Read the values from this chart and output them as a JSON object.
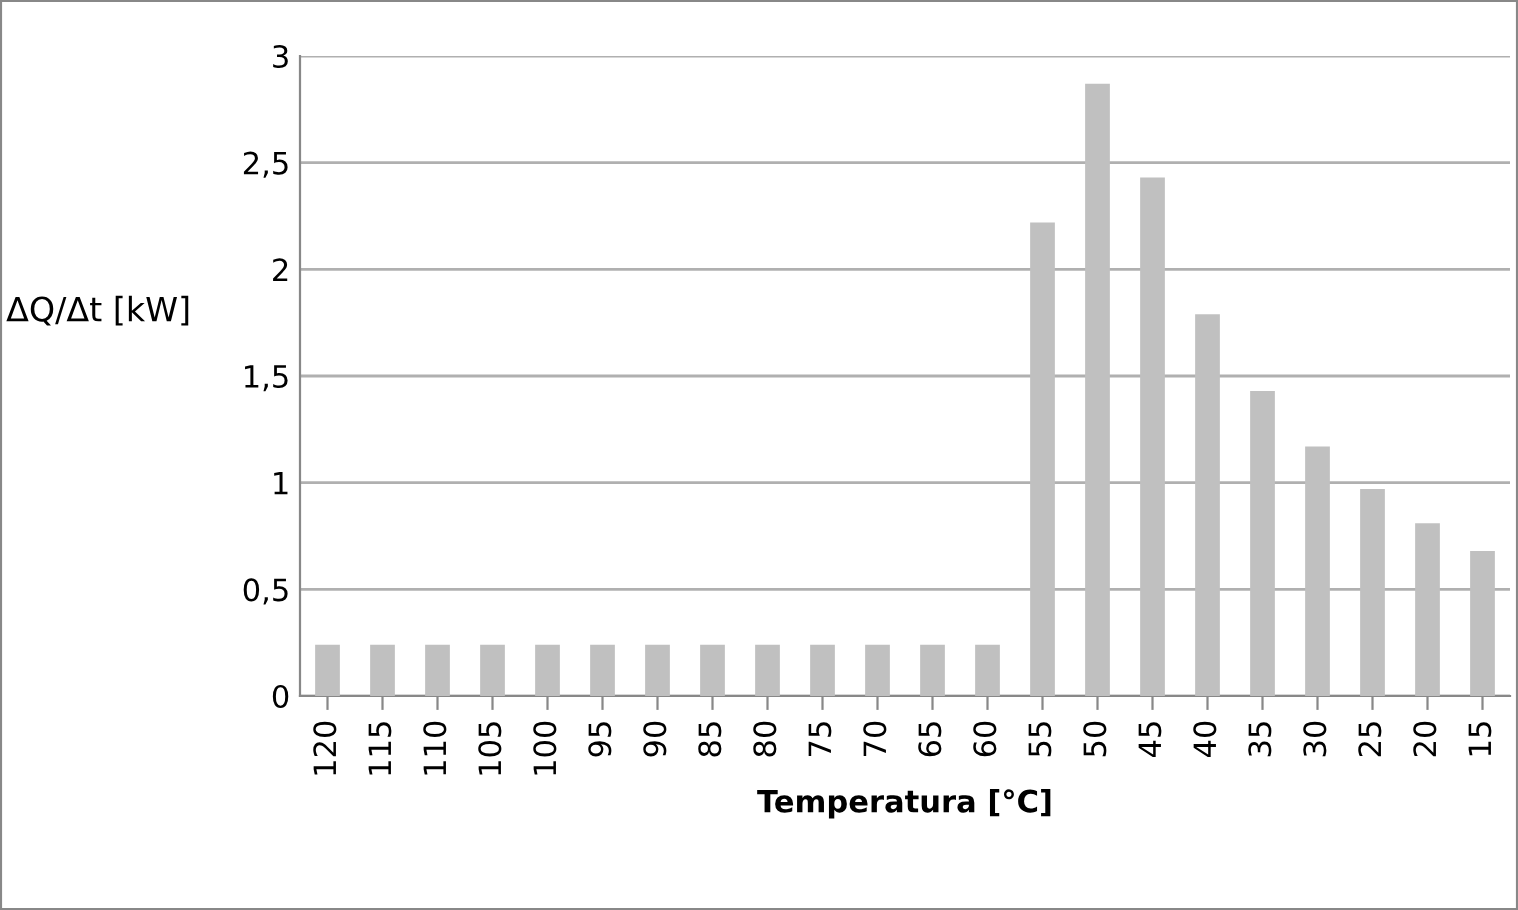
{
  "chart_data": {
    "type": "bar",
    "xlabel": "Temperatura [°C]",
    "ylabel": "ΔQ/Δt [kW]",
    "categories": [
      "120",
      "115",
      "110",
      "105",
      "100",
      "95",
      "90",
      "85",
      "80",
      "75",
      "70",
      "65",
      "60",
      "55",
      "50",
      "45",
      "40",
      "35",
      "30",
      "25",
      "20",
      "15"
    ],
    "series": [
      {
        "color": "#c0c0c0",
        "values": [
          0.24,
          0.24,
          0.24,
          0.24,
          0.24,
          0.24,
          0.24,
          0.24,
          0.24,
          0.24,
          0.24,
          0.24,
          0.24,
          2.22,
          2.87,
          2.43,
          1.79,
          1.43,
          1.17,
          0.97,
          0.81,
          0.68
        ]
      }
    ],
    "ylim": [
      0,
      3
    ],
    "yticks": [
      0,
      {
        "value": 0.5,
        "label": "0,5"
      },
      1,
      {
        "value": 1.5,
        "label": "1,5"
      },
      2,
      {
        "value": 2.5,
        "label": "2,5"
      },
      3
    ],
    "grid": "y",
    "legend": false
  }
}
